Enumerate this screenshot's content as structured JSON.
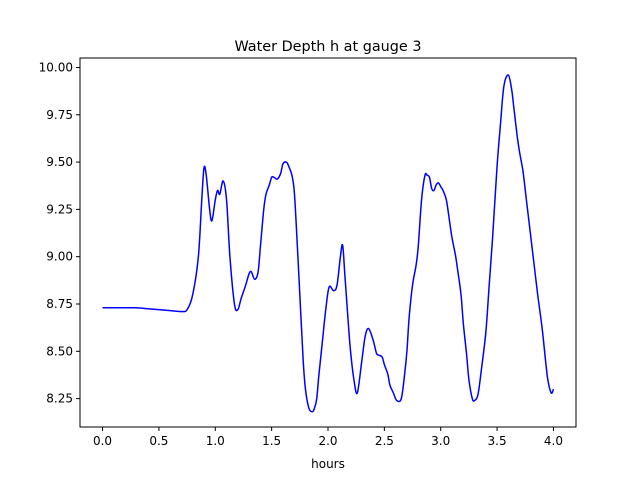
{
  "chart_data": {
    "type": "line",
    "title": "Water Depth h at gauge 3",
    "xlabel": "hours",
    "ylabel": "",
    "xlim": [
      -0.2,
      4.2
    ],
    "ylim": [
      8.1,
      10.05
    ],
    "grid": false,
    "legend": "none",
    "line_color": "#0000ff",
    "xticks": [
      {
        "value": 0.0,
        "label": "0.0"
      },
      {
        "value": 0.5,
        "label": "0.5"
      },
      {
        "value": 1.0,
        "label": "1.0"
      },
      {
        "value": 1.5,
        "label": "1.5"
      },
      {
        "value": 2.0,
        "label": "2.0"
      },
      {
        "value": 2.5,
        "label": "2.5"
      },
      {
        "value": 3.0,
        "label": "3.0"
      },
      {
        "value": 3.5,
        "label": "3.5"
      },
      {
        "value": 4.0,
        "label": "4.0"
      }
    ],
    "yticks": [
      {
        "value": 8.25,
        "label": "8.25"
      },
      {
        "value": 8.5,
        "label": "8.50"
      },
      {
        "value": 8.75,
        "label": "8.75"
      },
      {
        "value": 9.0,
        "label": "9.00"
      },
      {
        "value": 9.25,
        "label": "9.25"
      },
      {
        "value": 9.5,
        "label": "9.50"
      },
      {
        "value": 9.75,
        "label": "9.75"
      },
      {
        "value": 10.0,
        "label": "10.00"
      }
    ],
    "series": [
      {
        "x": [
          0.0,
          0.1,
          0.2,
          0.3,
          0.4,
          0.5,
          0.6,
          0.7,
          0.75,
          0.8,
          0.85,
          0.88,
          0.9,
          0.92,
          0.95,
          0.97,
          1.0,
          1.02,
          1.04,
          1.07,
          1.1,
          1.13,
          1.17,
          1.2,
          1.23,
          1.27,
          1.3,
          1.32,
          1.35,
          1.38,
          1.4,
          1.43,
          1.45,
          1.48,
          1.5,
          1.52,
          1.55,
          1.58,
          1.6,
          1.63,
          1.65,
          1.68,
          1.7,
          1.72,
          1.75,
          1.78,
          1.8,
          1.83,
          1.86,
          1.88,
          1.9,
          1.92,
          1.95,
          1.98,
          2.01,
          2.05,
          2.08,
          2.11,
          2.13,
          2.15,
          2.18,
          2.2,
          2.23,
          2.26,
          2.3,
          2.33,
          2.36,
          2.4,
          2.43,
          2.45,
          2.48,
          2.5,
          2.53,
          2.55,
          2.58,
          2.61,
          2.65,
          2.68,
          2.7,
          2.72,
          2.75,
          2.78,
          2.8,
          2.83,
          2.86,
          2.88,
          2.9,
          2.92,
          2.94,
          2.96,
          2.98,
          3.0,
          3.02,
          3.05,
          3.08,
          3.1,
          3.13,
          3.15,
          3.18,
          3.2,
          3.23,
          3.25,
          3.28,
          3.3,
          3.33,
          3.36,
          3.4,
          3.43,
          3.46,
          3.5,
          3.53,
          3.56,
          3.6,
          3.63,
          3.65,
          3.68,
          3.7,
          3.73,
          3.76,
          3.8,
          3.83,
          3.86,
          3.9,
          3.93,
          3.95,
          3.98,
          4.0
        ],
        "y": [
          8.73,
          8.73,
          8.73,
          8.73,
          8.725,
          8.72,
          8.715,
          8.71,
          8.72,
          8.8,
          9.0,
          9.3,
          9.47,
          9.43,
          9.25,
          9.19,
          9.3,
          9.35,
          9.33,
          9.4,
          9.3,
          9.0,
          8.75,
          8.72,
          8.78,
          8.85,
          8.91,
          8.92,
          8.88,
          8.92,
          9.05,
          9.25,
          9.33,
          9.38,
          9.42,
          9.42,
          9.41,
          9.44,
          9.49,
          9.5,
          9.48,
          9.43,
          9.35,
          9.15,
          8.8,
          8.45,
          8.3,
          8.2,
          8.18,
          8.2,
          8.25,
          8.38,
          8.55,
          8.72,
          8.84,
          8.82,
          8.85,
          9.0,
          9.06,
          8.9,
          8.65,
          8.5,
          8.35,
          8.28,
          8.45,
          8.58,
          8.62,
          8.56,
          8.49,
          8.48,
          8.47,
          8.43,
          8.38,
          8.32,
          8.28,
          8.24,
          8.25,
          8.38,
          8.5,
          8.68,
          8.85,
          8.95,
          9.05,
          9.3,
          9.43,
          9.43,
          9.42,
          9.36,
          9.35,
          9.38,
          9.39,
          9.37,
          9.35,
          9.3,
          9.18,
          9.1,
          9.01,
          8.93,
          8.8,
          8.65,
          8.48,
          8.35,
          8.25,
          8.24,
          8.27,
          8.4,
          8.6,
          8.85,
          9.1,
          9.48,
          9.7,
          9.9,
          9.96,
          9.88,
          9.78,
          9.63,
          9.55,
          9.45,
          9.3,
          9.1,
          8.95,
          8.8,
          8.62,
          8.45,
          8.35,
          8.28,
          8.3
        ]
      }
    ]
  }
}
